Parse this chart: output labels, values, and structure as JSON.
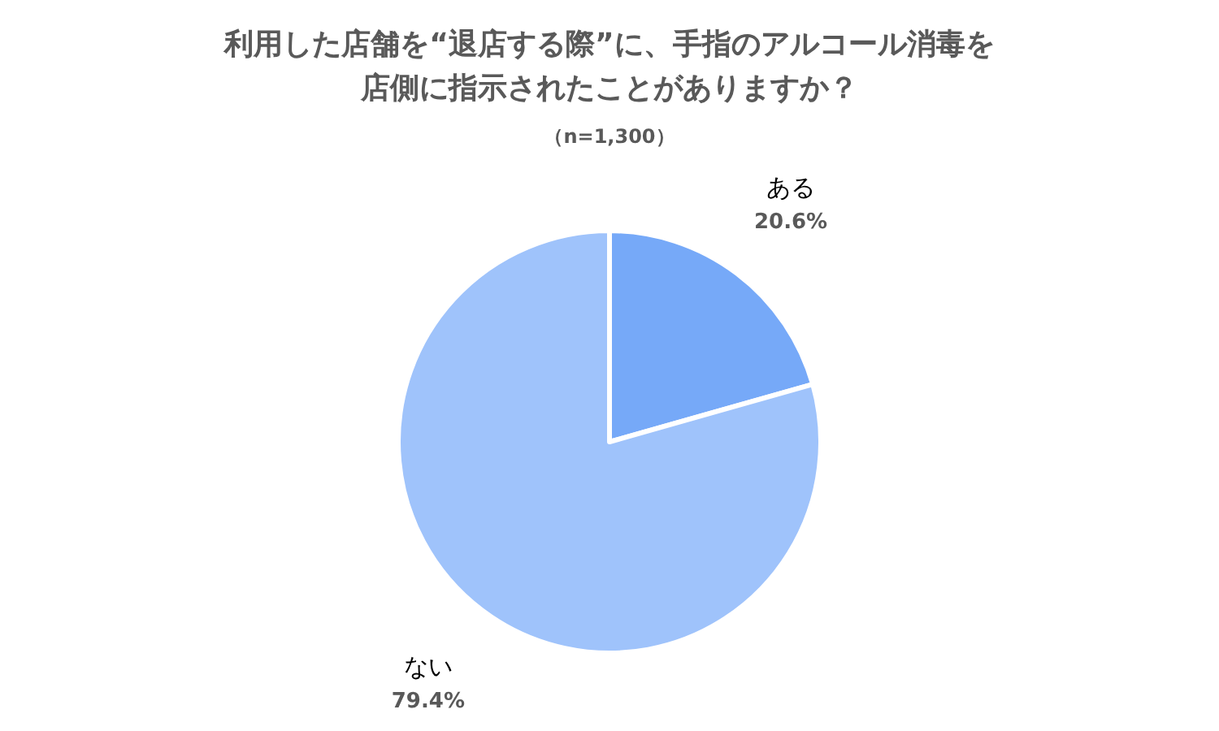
{
  "chart_data": {
    "type": "pie",
    "title": "利用した店舗を“退店する際”に、手指のアルコール消毒を店側に指示されたことがありますか？",
    "subtitle": "（n=1,300）",
    "categories": [
      "ある",
      "ない"
    ],
    "values": [
      20.6,
      79.4
    ],
    "colors": [
      "#76a9f8",
      "#9fc3fb"
    ],
    "value_labels": [
      "20.6%",
      "79.4%"
    ]
  }
}
